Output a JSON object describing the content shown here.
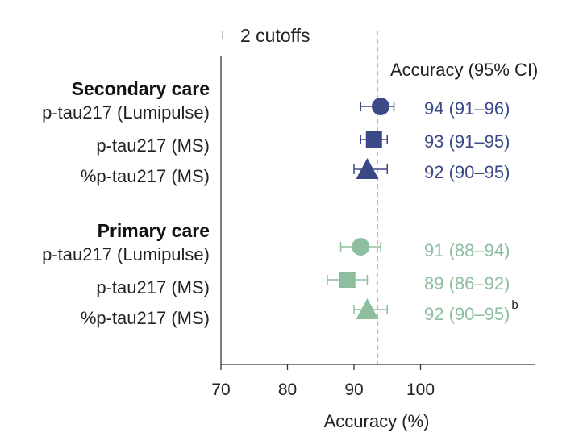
{
  "legend": {
    "label": "2 cutoffs"
  },
  "chart_data": {
    "type": "forest",
    "xlabel": "Accuracy (%)",
    "xlim": [
      70,
      117
    ],
    "xticks": [
      70,
      80,
      90,
      100
    ],
    "reference_line": 93.5,
    "ci_header": "Accuracy (95% CI)",
    "groups": [
      {
        "name": "Secondary care",
        "color": "#3b4a86",
        "rows": [
          {
            "label": "p-tau217 (Lumipulse)",
            "marker": "circle",
            "value": 94,
            "lo": 91,
            "hi": 96,
            "ci_text": "94 (91–96)"
          },
          {
            "label": "p-tau217 (MS)",
            "marker": "square",
            "value": 93,
            "lo": 91,
            "hi": 95,
            "ci_text": "93 (91–95)"
          },
          {
            "label": "%p-tau217 (MS)",
            "marker": "triangle",
            "value": 92,
            "lo": 90,
            "hi": 95,
            "ci_text": "92 (90–95)"
          }
        ]
      },
      {
        "name": "Primary care",
        "color": "#8dbf9e",
        "rows": [
          {
            "label": "p-tau217 (Lumipulse)",
            "marker": "circle",
            "value": 91,
            "lo": 88,
            "hi": 94,
            "ci_text": "91 (88–94)"
          },
          {
            "label": "p-tau217 (MS)",
            "marker": "square",
            "value": 89,
            "lo": 86,
            "hi": 92,
            "ci_text": "89 (86–92)"
          },
          {
            "label": "%p-tau217 (MS)",
            "marker": "triangle",
            "value": 92,
            "lo": 90,
            "hi": 95,
            "ci_text": "92 (90–95)",
            "superscript": "b"
          }
        ]
      }
    ]
  }
}
